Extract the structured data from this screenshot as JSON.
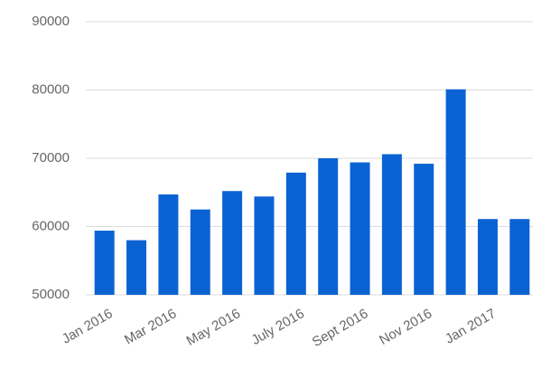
{
  "chart_data": {
    "type": "bar",
    "categories": [
      "Jan 2016",
      null,
      "Mar 2016",
      null,
      "May 2016",
      null,
      "July 2016",
      null,
      "Sept 2016",
      null,
      "Nov 2016",
      null,
      "Jan 2017",
      null
    ],
    "values": [
      59400,
      58000,
      64700,
      62500,
      65200,
      64400,
      67900,
      70000,
      69400,
      70600,
      69200,
      80100,
      61100,
      61100
    ],
    "color": "#0b63d3",
    "ylim": [
      50000,
      90000
    ],
    "yticks": [
      50000,
      60000,
      70000,
      80000,
      90000
    ],
    "grid": true
  }
}
